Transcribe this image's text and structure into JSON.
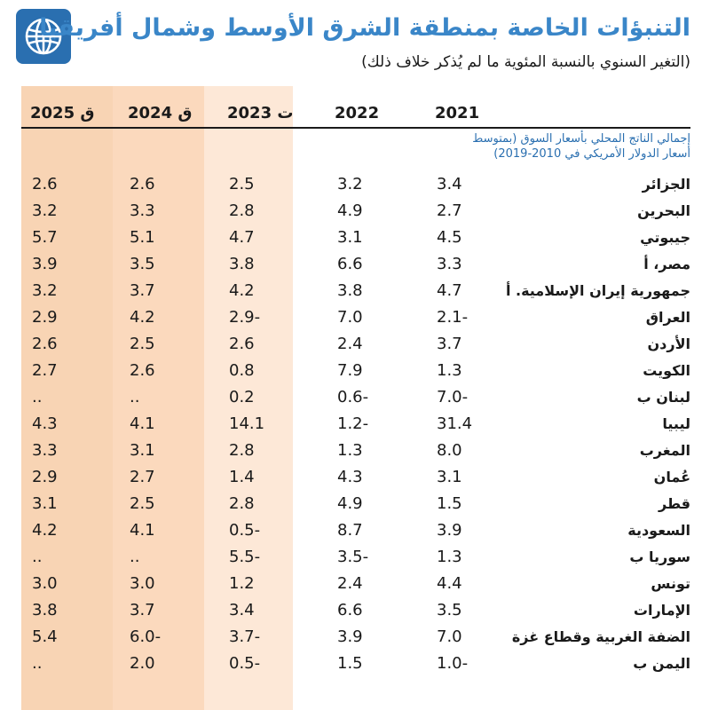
{
  "title": "التنبؤات الخاصة بمنطقة الشرق الأوسط وشمال أفريقيا",
  "subtitle": "(التغير السنوي بالنسبة المئوية ما لم يُذكر خلاف ذلك)",
  "logo_icon": "globe-icon",
  "columns": [
    "2025 ق",
    "2024 ق",
    "2023 ت",
    "2022",
    "2021"
  ],
  "section_label": "إجمالي الناتج المحلي بأسعار السوق (بمتوسط أسعار الدولار الأمريكي في 2010-2019)",
  "rows": [
    {
      "country": "الجزائر",
      "y2025": "2.6",
      "y2024": "2.6",
      "y2023": "2.5",
      "y2022": "3.2",
      "y2021": "3.4"
    },
    {
      "country": "البحرين",
      "y2025": "3.2",
      "y2024": "3.3",
      "y2023": "2.8",
      "y2022": "4.9",
      "y2021": "2.7"
    },
    {
      "country": "جيبوتي",
      "y2025": "5.7",
      "y2024": "5.1",
      "y2023": "4.7",
      "y2022": "3.1",
      "y2021": "4.5"
    },
    {
      "country": "مصر، أ",
      "y2025": "3.9",
      "y2024": "3.5",
      "y2023": "3.8",
      "y2022": "6.6",
      "y2021": "3.3"
    },
    {
      "country": "جمهورية إيران الإسلامية. أ",
      "y2025": "3.2",
      "y2024": "3.7",
      "y2023": "4.2",
      "y2022": "3.8",
      "y2021": "4.7"
    },
    {
      "country": "العراق",
      "y2025": "2.9",
      "y2024": "4.2",
      "y2023": "2.9-",
      "y2022": "7.0",
      "y2021": "2.1-"
    },
    {
      "country": "الأردن",
      "y2025": "2.6",
      "y2024": "2.5",
      "y2023": "2.6",
      "y2022": "2.4",
      "y2021": "3.7"
    },
    {
      "country": "الكويت",
      "y2025": "2.7",
      "y2024": "2.6",
      "y2023": "0.8",
      "y2022": "7.9",
      "y2021": "1.3"
    },
    {
      "country": "لبنان ب",
      "y2025": "..",
      "y2024": "..",
      "y2023": "0.2",
      "y2022": "0.6-",
      "y2021": "7.0-"
    },
    {
      "country": "ليبيا",
      "y2025": "4.3",
      "y2024": "4.1",
      "y2023": "14.1",
      "y2022": "1.2-",
      "y2021": "31.4"
    },
    {
      "country": "المغرب",
      "y2025": "3.3",
      "y2024": "3.1",
      "y2023": "2.8",
      "y2022": "1.3",
      "y2021": "8.0"
    },
    {
      "country": "عُمان",
      "y2025": "2.9",
      "y2024": "2.7",
      "y2023": "1.4",
      "y2022": "4.3",
      "y2021": "3.1"
    },
    {
      "country": "قطر",
      "y2025": "3.1",
      "y2024": "2.5",
      "y2023": "2.8",
      "y2022": "4.9",
      "y2021": "1.5"
    },
    {
      "country": "السعودية",
      "y2025": "4.2",
      "y2024": "4.1",
      "y2023": "0.5-",
      "y2022": "8.7",
      "y2021": "3.9"
    },
    {
      "country": "سوريا ب",
      "y2025": "..",
      "y2024": "..",
      "y2023": "5.5-",
      "y2022": "3.5-",
      "y2021": "1.3"
    },
    {
      "country": "تونس",
      "y2025": "3.0",
      "y2024": "3.0",
      "y2023": "1.2",
      "y2022": "2.4",
      "y2021": "4.4"
    },
    {
      "country": "الإمارات",
      "y2025": "3.8",
      "y2024": "3.7",
      "y2023": "3.4",
      "y2022": "6.6",
      "y2021": "3.5"
    },
    {
      "country": "الضفة الغربية وقطاع غزة",
      "y2025": "5.4",
      "y2024": "6.0-",
      "y2023": "3.7-",
      "y2022": "3.9",
      "y2021": "7.0"
    },
    {
      "country": "اليمن ب",
      "y2025": "..",
      "y2024": "2.0",
      "y2023": "0.5-",
      "y2022": "1.5",
      "y2021": "1.0-"
    }
  ]
}
